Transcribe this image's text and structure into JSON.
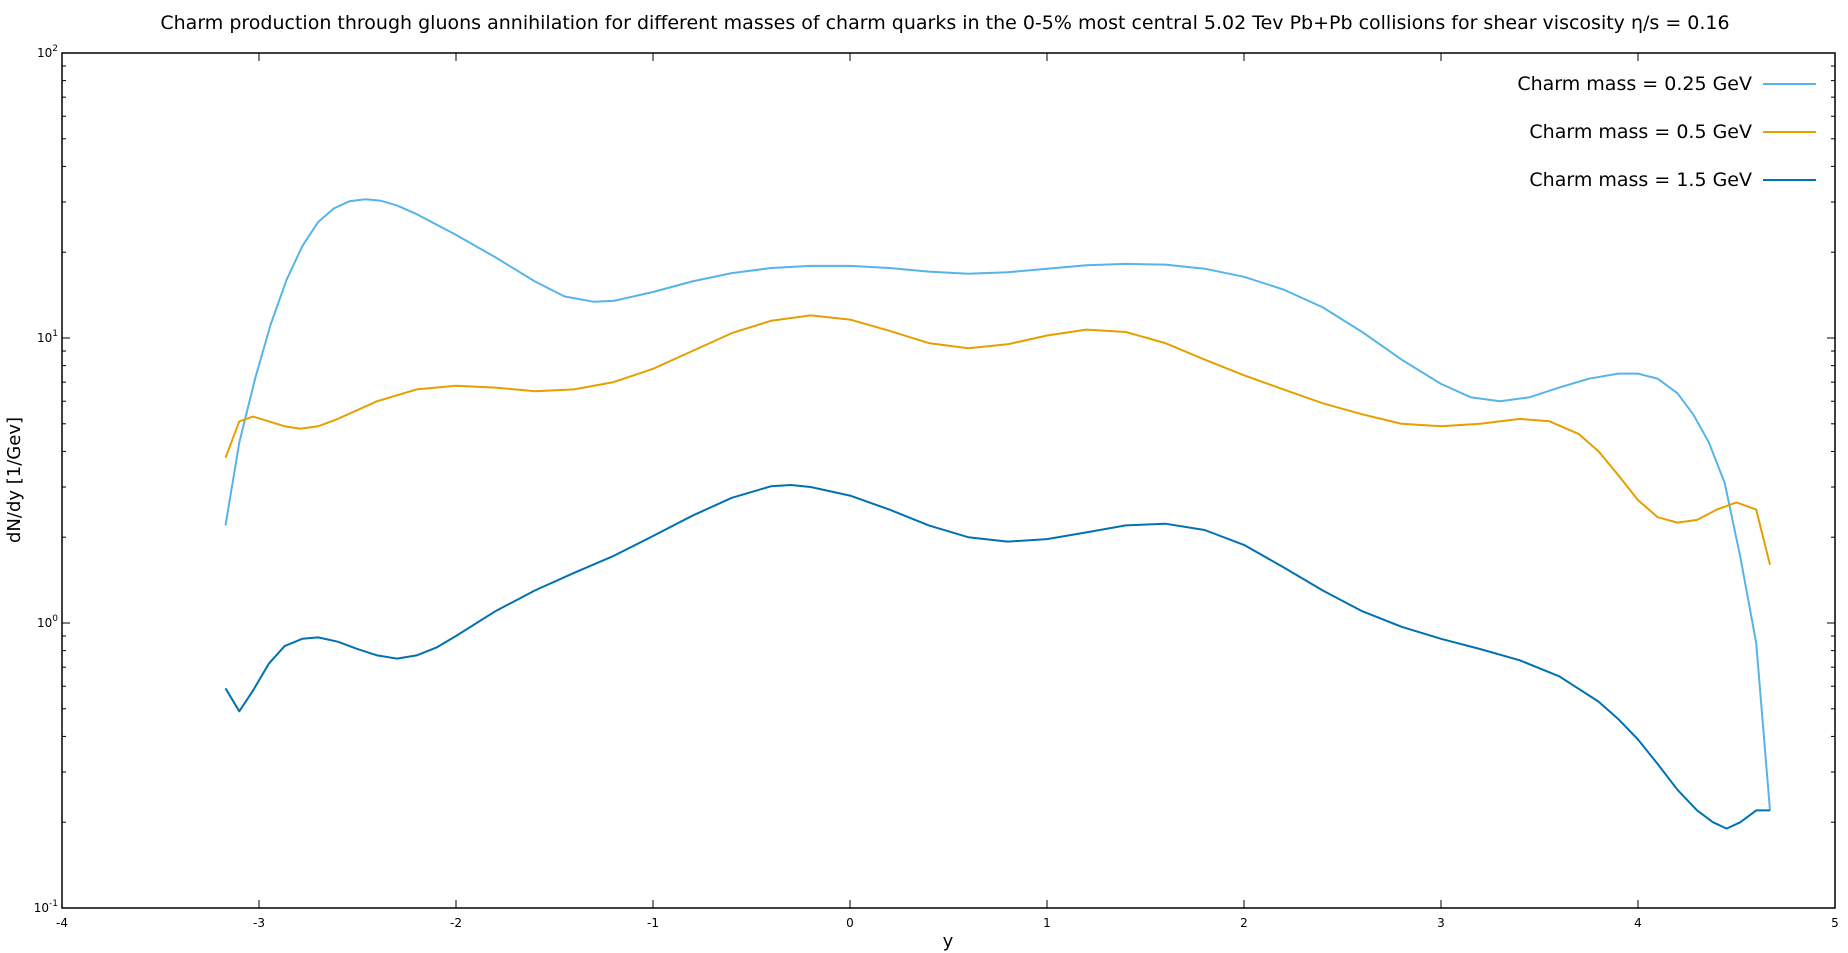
{
  "chart_data": {
    "type": "line",
    "title": "Charm production through gluons annihilation for different masses of charm quarks in the 0-5% most central 5.02 Tev Pb+Pb collisions for shear viscosity η/s = 0.16",
    "xlabel": "y",
    "ylabel": "dN/dy [1/Gev]",
    "xlim": [
      -4,
      5
    ],
    "ylim": [
      0.1,
      100
    ],
    "yscale": "log",
    "x_ticks": [
      "-4",
      "-3",
      "-2",
      "-1",
      "0",
      "1",
      "2",
      "3",
      "4",
      "5"
    ],
    "y_ticks": [
      {
        "base": "10",
        "exp": "2"
      },
      {
        "base": "10",
        "exp": "1"
      },
      {
        "base": "10",
        "exp": "0"
      },
      {
        "base": "10",
        "exp": "-1"
      }
    ],
    "grid": false,
    "legend_position": "top-right",
    "series": [
      {
        "name": "Charm mass = 0.25 GeV",
        "color": "#56b4e9",
        "points": [
          [
            -3.17,
            2.2
          ],
          [
            -3.1,
            4.3
          ],
          [
            -3.02,
            7.2
          ],
          [
            -2.94,
            11.2
          ],
          [
            -2.86,
            16.0
          ],
          [
            -2.78,
            21.0
          ],
          [
            -2.7,
            25.5
          ],
          [
            -2.62,
            28.5
          ],
          [
            -2.54,
            30.2
          ],
          [
            -2.46,
            30.7
          ],
          [
            -2.38,
            30.3
          ],
          [
            -2.3,
            29.2
          ],
          [
            -2.2,
            27.2
          ],
          [
            -2.0,
            23.0
          ],
          [
            -1.8,
            19.2
          ],
          [
            -1.6,
            15.8
          ],
          [
            -1.45,
            14.0
          ],
          [
            -1.3,
            13.4
          ],
          [
            -1.2,
            13.5
          ],
          [
            -1.0,
            14.5
          ],
          [
            -0.8,
            15.8
          ],
          [
            -0.6,
            16.9
          ],
          [
            -0.4,
            17.6
          ],
          [
            -0.2,
            17.9
          ],
          [
            0.0,
            17.9
          ],
          [
            0.2,
            17.6
          ],
          [
            0.4,
            17.1
          ],
          [
            0.6,
            16.8
          ],
          [
            0.8,
            17.0
          ],
          [
            1.0,
            17.5
          ],
          [
            1.2,
            18.0
          ],
          [
            1.4,
            18.2
          ],
          [
            1.6,
            18.1
          ],
          [
            1.8,
            17.5
          ],
          [
            2.0,
            16.4
          ],
          [
            2.2,
            14.8
          ],
          [
            2.4,
            12.8
          ],
          [
            2.6,
            10.5
          ],
          [
            2.8,
            8.4
          ],
          [
            3.0,
            6.9
          ],
          [
            3.15,
            6.2
          ],
          [
            3.3,
            6.0
          ],
          [
            3.45,
            6.2
          ],
          [
            3.6,
            6.7
          ],
          [
            3.75,
            7.2
          ],
          [
            3.9,
            7.5
          ],
          [
            4.0,
            7.5
          ],
          [
            4.1,
            7.2
          ],
          [
            4.2,
            6.4
          ],
          [
            4.28,
            5.4
          ],
          [
            4.36,
            4.3
          ],
          [
            4.44,
            3.1
          ],
          [
            4.52,
            1.7
          ],
          [
            4.6,
            0.85
          ],
          [
            4.67,
            0.22
          ]
        ]
      },
      {
        "name": "Charm mass = 0.5 GeV",
        "color": "#e69f00",
        "points": [
          [
            -3.17,
            3.8
          ],
          [
            -3.1,
            5.1
          ],
          [
            -3.03,
            5.3
          ],
          [
            -2.95,
            5.1
          ],
          [
            -2.87,
            4.9
          ],
          [
            -2.79,
            4.8
          ],
          [
            -2.7,
            4.9
          ],
          [
            -2.6,
            5.2
          ],
          [
            -2.4,
            6.0
          ],
          [
            -2.2,
            6.6
          ],
          [
            -2.0,
            6.8
          ],
          [
            -1.8,
            6.7
          ],
          [
            -1.6,
            6.5
          ],
          [
            -1.4,
            6.6
          ],
          [
            -1.2,
            7.0
          ],
          [
            -1.0,
            7.8
          ],
          [
            -0.8,
            9.0
          ],
          [
            -0.6,
            10.4
          ],
          [
            -0.4,
            11.5
          ],
          [
            -0.2,
            12.0
          ],
          [
            0.0,
            11.6
          ],
          [
            0.2,
            10.6
          ],
          [
            0.4,
            9.6
          ],
          [
            0.6,
            9.2
          ],
          [
            0.8,
            9.5
          ],
          [
            1.0,
            10.2
          ],
          [
            1.2,
            10.7
          ],
          [
            1.4,
            10.5
          ],
          [
            1.6,
            9.6
          ],
          [
            1.8,
            8.4
          ],
          [
            2.0,
            7.4
          ],
          [
            2.2,
            6.6
          ],
          [
            2.4,
            5.9
          ],
          [
            2.6,
            5.4
          ],
          [
            2.8,
            5.0
          ],
          [
            3.0,
            4.9
          ],
          [
            3.2,
            5.0
          ],
          [
            3.4,
            5.2
          ],
          [
            3.55,
            5.1
          ],
          [
            3.7,
            4.6
          ],
          [
            3.8,
            4.0
          ],
          [
            3.9,
            3.3
          ],
          [
            4.0,
            2.7
          ],
          [
            4.1,
            2.35
          ],
          [
            4.2,
            2.25
          ],
          [
            4.3,
            2.3
          ],
          [
            4.4,
            2.5
          ],
          [
            4.5,
            2.65
          ],
          [
            4.6,
            2.5
          ],
          [
            4.67,
            1.6
          ]
        ]
      },
      {
        "name": "Charm mass = 1.5 GeV",
        "color": "#0072b2",
        "points": [
          [
            -3.17,
            0.59
          ],
          [
            -3.1,
            0.49
          ],
          [
            -3.03,
            0.58
          ],
          [
            -2.95,
            0.72
          ],
          [
            -2.87,
            0.83
          ],
          [
            -2.78,
            0.88
          ],
          [
            -2.7,
            0.89
          ],
          [
            -2.6,
            0.86
          ],
          [
            -2.5,
            0.81
          ],
          [
            -2.4,
            0.77
          ],
          [
            -2.3,
            0.75
          ],
          [
            -2.2,
            0.77
          ],
          [
            -2.1,
            0.82
          ],
          [
            -2.0,
            0.9
          ],
          [
            -1.8,
            1.1
          ],
          [
            -1.6,
            1.3
          ],
          [
            -1.4,
            1.5
          ],
          [
            -1.2,
            1.72
          ],
          [
            -1.0,
            2.02
          ],
          [
            -0.8,
            2.38
          ],
          [
            -0.6,
            2.75
          ],
          [
            -0.4,
            3.02
          ],
          [
            -0.3,
            3.05
          ],
          [
            -0.2,
            3.0
          ],
          [
            0.0,
            2.8
          ],
          [
            0.2,
            2.5
          ],
          [
            0.4,
            2.2
          ],
          [
            0.6,
            2.0
          ],
          [
            0.8,
            1.93
          ],
          [
            1.0,
            1.97
          ],
          [
            1.2,
            2.08
          ],
          [
            1.4,
            2.2
          ],
          [
            1.6,
            2.23
          ],
          [
            1.8,
            2.12
          ],
          [
            2.0,
            1.88
          ],
          [
            2.2,
            1.57
          ],
          [
            2.4,
            1.3
          ],
          [
            2.6,
            1.1
          ],
          [
            2.8,
            0.97
          ],
          [
            3.0,
            0.88
          ],
          [
            3.2,
            0.81
          ],
          [
            3.4,
            0.74
          ],
          [
            3.6,
            0.65
          ],
          [
            3.8,
            0.53
          ],
          [
            3.9,
            0.46
          ],
          [
            4.0,
            0.39
          ],
          [
            4.1,
            0.32
          ],
          [
            4.2,
            0.26
          ],
          [
            4.3,
            0.22
          ],
          [
            4.38,
            0.2
          ],
          [
            4.45,
            0.19
          ],
          [
            4.52,
            0.2
          ],
          [
            4.6,
            0.22
          ],
          [
            4.67,
            0.22
          ]
        ]
      }
    ]
  }
}
